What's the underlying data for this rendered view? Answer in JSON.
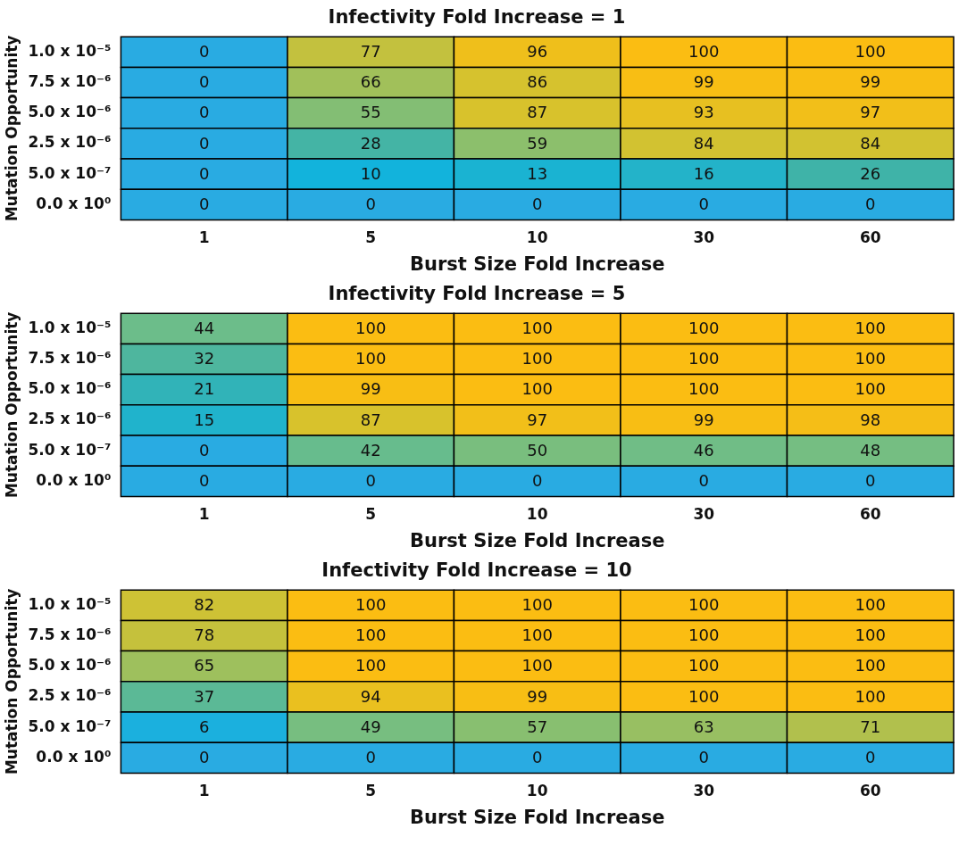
{
  "chart_data": [
    {
      "type": "heatmap",
      "title": "Infectivity Fold Increase = 1",
      "xlabel": "Burst Size Fold Increase",
      "ylabel": "Mutation Opportunity",
      "categories": [
        "1",
        "5",
        "10",
        "30",
        "60"
      ],
      "y_categories": [
        "1.0 x 10⁻⁵",
        "7.5 x 10⁻⁶",
        "5.0 x 10⁻⁶",
        "2.5 x 10⁻⁶",
        "5.0 x 10⁻⁷",
        "0.0 x 10⁰"
      ],
      "data_labels": true,
      "cells": [
        [
          0,
          77,
          96,
          100,
          100
        ],
        [
          0,
          66,
          86,
          99,
          99
        ],
        [
          0,
          55,
          87,
          93,
          97
        ],
        [
          0,
          28,
          59,
          84,
          84
        ],
        [
          0,
          10,
          13,
          16,
          26
        ],
        [
          0,
          0,
          0,
          0,
          0
        ]
      ]
    },
    {
      "type": "heatmap",
      "title": "Infectivity Fold Increase = 5",
      "xlabel": "Burst Size Fold Increase",
      "ylabel": "Mutation Opportunity",
      "categories": [
        "1",
        "5",
        "10",
        "30",
        "60"
      ],
      "y_categories": [
        "1.0 x 10⁻⁵",
        "7.5 x 10⁻⁶",
        "5.0 x 10⁻⁶",
        "2.5 x 10⁻⁶",
        "5.0 x 10⁻⁷",
        "0.0 x 10⁰"
      ],
      "data_labels": true,
      "cells": [
        [
          44,
          100,
          100,
          100,
          100
        ],
        [
          32,
          100,
          100,
          100,
          100
        ],
        [
          21,
          99,
          100,
          100,
          100
        ],
        [
          15,
          87,
          97,
          99,
          98
        ],
        [
          0,
          42,
          50,
          46,
          48
        ],
        [
          0,
          0,
          0,
          0,
          0
        ]
      ]
    },
    {
      "type": "heatmap",
      "title": "Infectivity Fold Increase = 10",
      "xlabel": "Burst Size Fold Increase",
      "ylabel": "Mutation Opportunity",
      "categories": [
        "1",
        "5",
        "10",
        "30",
        "60"
      ],
      "y_categories": [
        "1.0 x 10⁻⁵",
        "7.5 x 10⁻⁶",
        "5.0 x 10⁻⁶",
        "2.5 x 10⁻⁶",
        "5.0 x 10⁻⁷",
        "0.0 x 10⁰"
      ],
      "data_labels": true,
      "cells": [
        [
          82,
          100,
          100,
          100,
          100
        ],
        [
          78,
          100,
          100,
          100,
          100
        ],
        [
          65,
          100,
          100,
          100,
          100
        ],
        [
          37,
          94,
          99,
          100,
          100
        ],
        [
          6,
          49,
          57,
          63,
          71
        ],
        [
          0,
          0,
          0,
          0,
          0
        ]
      ]
    }
  ]
}
